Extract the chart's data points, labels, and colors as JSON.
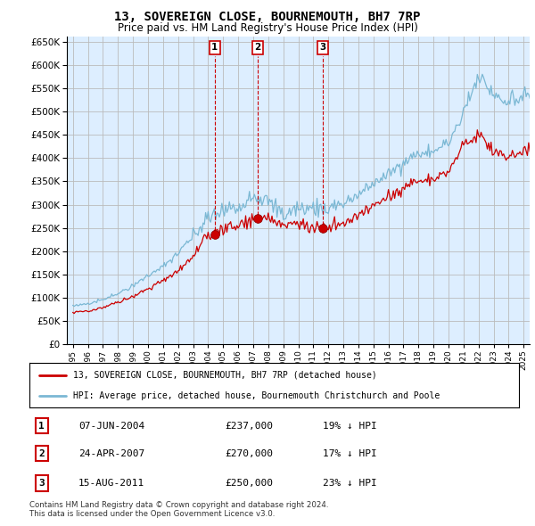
{
  "title": "13, SOVEREIGN CLOSE, BOURNEMOUTH, BH7 7RP",
  "subtitle": "Price paid vs. HM Land Registry's House Price Index (HPI)",
  "legend_line1": "13, SOVEREIGN CLOSE, BOURNEMOUTH, BH7 7RP (detached house)",
  "legend_line2": "HPI: Average price, detached house, Bournemouth Christchurch and Poole",
  "footer": "Contains HM Land Registry data © Crown copyright and database right 2024.\nThis data is licensed under the Open Government Licence v3.0.",
  "transactions": [
    {
      "num": 1,
      "date": "07-JUN-2004",
      "price": 237000,
      "pct": "19%",
      "dir": "↓",
      "year": 2004.44
    },
    {
      "num": 2,
      "date": "24-APR-2007",
      "price": 270000,
      "pct": "17%",
      "dir": "↓",
      "year": 2007.3
    },
    {
      "num": 3,
      "date": "15-AUG-2011",
      "price": 250000,
      "pct": "23%",
      "dir": "↓",
      "year": 2011.62
    }
  ],
  "hpi_color": "#7bb8d4",
  "price_paid_color": "#cc0000",
  "marker_color": "#cc0000",
  "grid_color": "#bbbbbb",
  "bg_color": "#ffffff",
  "plot_bg_color": "#ddeeff",
  "ylim": [
    0,
    660000
  ],
  "yticks": [
    0,
    50000,
    100000,
    150000,
    200000,
    250000,
    300000,
    350000,
    400000,
    450000,
    500000,
    550000,
    600000,
    650000
  ],
  "xlim_start": 1994.6,
  "xlim_end": 2025.4
}
